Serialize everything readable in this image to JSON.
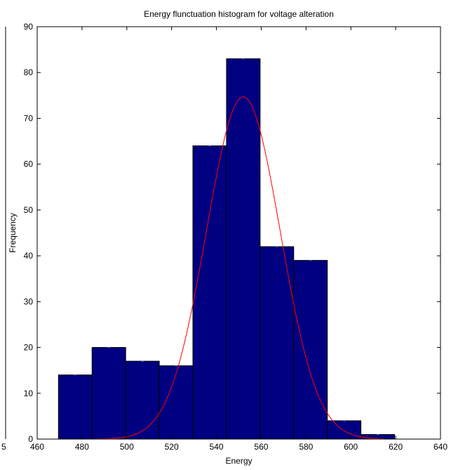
{
  "chart_data": {
    "type": "bar",
    "title": "Energy flunctuation histogram for voltage alteration",
    "xlabel": "Energy",
    "ylabel": "Frequency",
    "xlim": [
      460,
      640
    ],
    "ylim": [
      0,
      90
    ],
    "xticks": [
      460,
      480,
      500,
      520,
      540,
      560,
      580,
      600,
      620,
      640
    ],
    "yticks": [
      0,
      10,
      20,
      30,
      40,
      50,
      60,
      70,
      80,
      90
    ],
    "grid": false,
    "bin_width": 15,
    "bins": [
      {
        "center": 477,
        "value": 14
      },
      {
        "center": 492,
        "value": 20
      },
      {
        "center": 507,
        "value": 17
      },
      {
        "center": 522,
        "value": 16
      },
      {
        "center": 537,
        "value": 64
      },
      {
        "center": 552,
        "value": 83
      },
      {
        "center": 567,
        "value": 42
      },
      {
        "center": 582,
        "value": 39
      },
      {
        "center": 597,
        "value": 4
      },
      {
        "center": 612,
        "value": 1
      }
    ],
    "fit_curve": {
      "type": "normal",
      "mean": 552,
      "std": 16.5,
      "peak": 74.7,
      "x_range": [
        477,
        615
      ]
    },
    "colors": {
      "bar_fill": "#000080",
      "bar_edge": "#000000",
      "curve": "#ff0000"
    }
  },
  "fragment": {
    "left_tick_label": "5"
  }
}
